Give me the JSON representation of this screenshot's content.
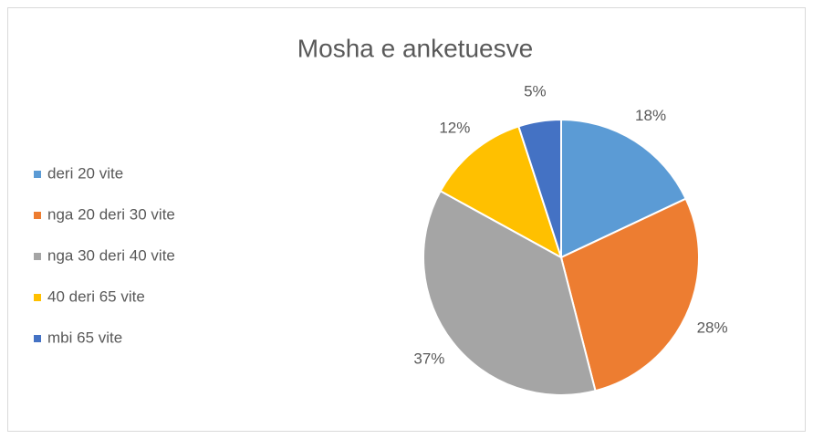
{
  "chart_data": {
    "type": "pie",
    "title": "Mosha e anketuesve",
    "categories": [
      "deri 20 vite",
      "nga 20 deri 30 vite",
      "nga 30 deri 40 vite",
      "40 deri 65 vite",
      "mbi 65 vite"
    ],
    "values": [
      18,
      28,
      37,
      12,
      5
    ],
    "value_labels": [
      "18%",
      "28%",
      "37%",
      "12%",
      "5%"
    ],
    "colors": [
      "#5b9bd5",
      "#ed7d31",
      "#a5a5a5",
      "#ffc000",
      "#4472c4"
    ],
    "legend": "left"
  }
}
